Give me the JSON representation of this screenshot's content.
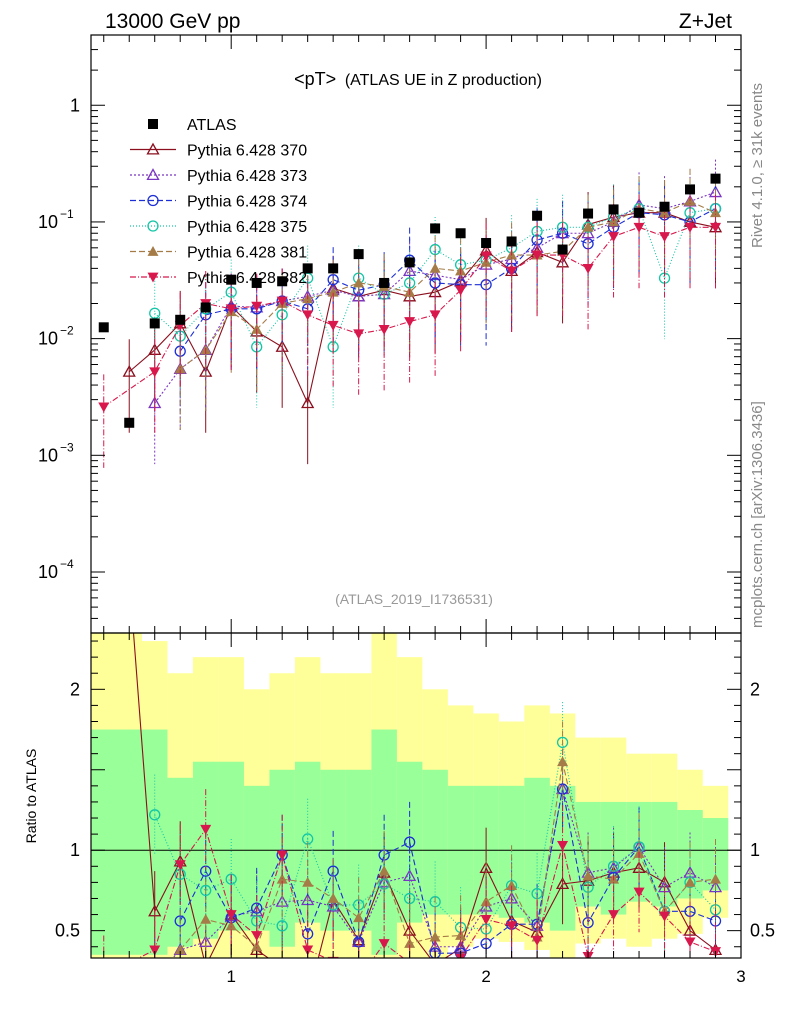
{
  "header": {
    "left": "13000 GeV pp",
    "right": "Z+Jet",
    "plot_title": "<pT>",
    "plot_subtitle": "(ATLAS UE in Z production)",
    "analysis_id": "(ATLAS_2019_I1736531)",
    "rivet_label": "Rivet 4.1.0, ≥ 31k events",
    "mcplots_label": "mcplots.cern.ch [arXiv:1306.3436]"
  },
  "chart_data": {
    "type": "scatter",
    "main": {
      "yscale": "log",
      "ylim": [
        3e-05,
        4
      ]
    },
    "ratio": {
      "ylabel": "Ratio to ATLAS",
      "ylim": [
        0.33,
        2.35
      ]
    },
    "xlim": [
      0.45,
      3.0
    ],
    "x": [
      0.5,
      0.6,
      0.7,
      0.8,
      0.9,
      1.0,
      1.1,
      1.2,
      1.3,
      1.4,
      1.5,
      1.6,
      1.7,
      1.8,
      1.9,
      2.0,
      2.1,
      2.2,
      2.3,
      2.4,
      2.5,
      2.6,
      2.7,
      2.8,
      2.9
    ],
    "xticks": [
      {
        "v": 1,
        "label": "1"
      },
      {
        "v": 2,
        "label": "2"
      },
      {
        "v": 3,
        "label": "3"
      }
    ],
    "yticks_main": [
      {
        "v": 1,
        "label": "1"
      },
      {
        "v": 0.1,
        "label": "10",
        "exp": "−1"
      },
      {
        "v": 0.01,
        "label": "10",
        "exp": "−2"
      },
      {
        "v": 0.001,
        "label": "10",
        "exp": "−3"
      },
      {
        "v": 0.0001,
        "label": "10",
        "exp": "−4"
      }
    ],
    "yticks_ratio": [
      {
        "v": 0.5,
        "label": "0.5"
      },
      {
        "v": 1,
        "label": "1"
      },
      {
        "v": 2,
        "label": "2"
      }
    ],
    "data": {
      "name": "ATLAS",
      "values": [
        0.0125,
        0.0019,
        0.0135,
        0.0145,
        0.0185,
        0.032,
        0.03,
        0.031,
        0.04,
        0.04,
        0.053,
        0.03,
        0.045,
        0.088,
        0.08,
        0.066,
        0.068,
        0.113,
        0.058,
        0.118,
        0.128,
        0.12,
        0.135,
        0.19,
        0.235
      ],
      "band_inner": [
        [
          0.35,
          1.75
        ],
        [
          0.35,
          1.75
        ],
        [
          0.35,
          1.75
        ],
        [
          0.4,
          1.45
        ],
        [
          0.45,
          1.55
        ],
        [
          0.5,
          1.55
        ],
        [
          0.5,
          1.4
        ],
        [
          0.4,
          1.5
        ],
        [
          0.55,
          1.55
        ],
        [
          0.5,
          1.5
        ],
        [
          0.5,
          1.5
        ],
        [
          0.35,
          1.75
        ],
        [
          0.55,
          1.55
        ],
        [
          0.6,
          1.5
        ],
        [
          0.6,
          1.4
        ],
        [
          0.6,
          1.4
        ],
        [
          0.58,
          1.4
        ],
        [
          0.55,
          1.45
        ],
        [
          0.5,
          1.4
        ],
        [
          0.65,
          1.3
        ],
        [
          0.6,
          1.3
        ],
        [
          0.68,
          1.3
        ],
        [
          0.65,
          1.3
        ],
        [
          0.7,
          1.25
        ],
        [
          0.75,
          1.2
        ]
      ],
      "band_outer": [
        [
          0.33,
          2.4
        ],
        [
          0.33,
          2.4
        ],
        [
          0.33,
          2.3
        ],
        [
          0.33,
          2.1
        ],
        [
          0.33,
          2.2
        ],
        [
          0.33,
          2.2
        ],
        [
          0.33,
          2.0
        ],
        [
          0.33,
          2.1
        ],
        [
          0.33,
          2.2
        ],
        [
          0.33,
          2.1
        ],
        [
          0.33,
          2.1
        ],
        [
          0.33,
          2.4
        ],
        [
          0.33,
          2.2
        ],
        [
          0.33,
          2.0
        ],
        [
          0.4,
          1.9
        ],
        [
          0.45,
          1.85
        ],
        [
          0.43,
          1.8
        ],
        [
          0.38,
          1.9
        ],
        [
          0.33,
          1.85
        ],
        [
          0.42,
          1.7
        ],
        [
          0.45,
          1.7
        ],
        [
          0.4,
          1.6
        ],
        [
          0.45,
          1.6
        ],
        [
          0.48,
          1.5
        ],
        [
          0.58,
          1.4
        ]
      ]
    },
    "legend_labels": [
      "ATLAS",
      "Pythia 6.428 370",
      "Pythia 6.428 373",
      "Pythia 6.428 374",
      "Pythia 6.428 375",
      "Pythia 6.428 381",
      "Pythia 6.428 382"
    ],
    "series": [
      {
        "name": "Pythia 6.428 370",
        "color": "#8b0f1e",
        "marker": "tri-up-open",
        "dash": "",
        "values": [
          null,
          0.0052,
          0.008,
          0.0135,
          0.0052,
          0.019,
          0.0115,
          0.0085,
          0.0028,
          0.027,
          0.023,
          0.026,
          0.023,
          0.025,
          0.031,
          0.057,
          0.038,
          0.055,
          0.045,
          0.095,
          0.11,
          0.12,
          0.12,
          0.1,
          0.09
        ],
        "ratio": [
          null,
          2.7,
          0.62,
          0.93,
          0.28,
          0.6,
          0.38,
          0.27,
          0.07,
          0.69,
          0.44,
          0.86,
          0.5,
          0.29,
          0.39,
          0.89,
          0.56,
          0.49,
          0.79,
          0.81,
          0.86,
          0.89,
          0.8,
          0.5,
          0.38
        ]
      },
      {
        "name": "Pythia 6.428 373",
        "color": "#7b35c2",
        "marker": "tri-up-open",
        "dash": "2,2",
        "values": [
          null,
          null,
          0.0028,
          0.0055,
          0.008,
          0.019,
          0.0185,
          0.021,
          0.023,
          0.026,
          0.023,
          0.024,
          0.038,
          0.035,
          0.032,
          0.043,
          0.048,
          0.06,
          0.08,
          0.08,
          0.1,
          0.14,
          0.13,
          0.15,
          0.18
        ],
        "ratio": [
          null,
          null,
          0.21,
          0.38,
          0.43,
          0.59,
          0.62,
          0.68,
          0.69,
          0.65,
          0.43,
          0.8,
          0.84,
          0.4,
          0.4,
          0.65,
          0.7,
          0.53,
          1.38,
          0.86,
          0.89,
          1.02,
          0.77,
          0.86,
          0.77
        ]
      },
      {
        "name": "Pythia 6.428 374",
        "color": "#1c2fd6",
        "marker": "circle-open",
        "dash": "6,3",
        "values": [
          null,
          null,
          null,
          0.0078,
          0.016,
          0.018,
          0.018,
          0.021,
          0.018,
          0.032,
          0.026,
          0.029,
          0.047,
          0.03,
          0.029,
          0.029,
          0.04,
          0.07,
          0.08,
          0.065,
          0.09,
          0.12,
          0.115,
          0.1,
          0.13
        ],
        "ratio": [
          null,
          null,
          null,
          0.56,
          0.87,
          0.58,
          0.64,
          0.97,
          0.48,
          0.87,
          0.43,
          0.97,
          1.05,
          0.36,
          0.36,
          0.42,
          0.54,
          0.54,
          1.38,
          0.55,
          0.83,
          1.02,
          0.62,
          0.62,
          0.56
        ]
      },
      {
        "name": "Pythia 6.428 375",
        "color": "#13c6a6",
        "marker": "circle-open",
        "dash": "1,2",
        "values": [
          null,
          null,
          0.0165,
          0.0105,
          0.018,
          0.025,
          0.0085,
          0.016,
          0.033,
          0.0085,
          0.033,
          0.024,
          0.03,
          0.058,
          0.043,
          0.047,
          0.06,
          0.083,
          0.09,
          0.09,
          0.11,
          0.13,
          0.033,
          0.12,
          0.13
        ],
        "ratio": [
          null,
          null,
          1.22,
          0.85,
          0.75,
          0.82,
          0.56,
          0.53,
          1.07,
          0.66,
          0.66,
          0.79,
          0.7,
          0.68,
          0.52,
          0.51,
          0.78,
          0.73,
          1.67,
          0.77,
          0.9,
          1.02,
          0.62,
          0.8,
          0.63
        ]
      },
      {
        "name": "Pythia 6.428 381",
        "color": "#a57c47",
        "marker": "tri-up",
        "dash": "6,3",
        "values": [
          null,
          null,
          null,
          0.0055,
          0.008,
          0.017,
          0.012,
          0.02,
          0.022,
          0.025,
          0.03,
          0.028,
          0.025,
          0.04,
          0.038,
          0.045,
          0.052,
          0.052,
          0.056,
          0.09,
          0.1,
          0.13,
          0.12,
          0.15,
          0.12
        ],
        "ratio": [
          null,
          null,
          null,
          0.38,
          0.57,
          0.53,
          0.4,
          0.82,
          0.8,
          0.7,
          0.58,
          0.87,
          0.42,
          0.46,
          0.47,
          0.68,
          0.78,
          0.46,
          1.55,
          0.84,
          0.82,
          0.98,
          0.62,
          0.8,
          0.82
        ]
      },
      {
        "name": "Pythia 6.428 382",
        "color": "#d8184c",
        "marker": "tri-down",
        "dash": "6,2,1,2",
        "values": [
          0.0026,
          null,
          0.0052,
          0.013,
          0.02,
          0.018,
          0.019,
          0.021,
          0.016,
          0.013,
          0.011,
          0.012,
          0.014,
          0.016,
          0.026,
          0.051,
          0.038,
          0.052,
          0.052,
          0.04,
          0.075,
          0.09,
          0.075,
          0.09,
          0.09
        ],
        "ratio": [
          0.22,
          null,
          0.38,
          0.91,
          1.13,
          0.6,
          0.47,
          0.97,
          0.38,
          0.31,
          0.2,
          0.42,
          0.3,
          0.19,
          0.33,
          0.57,
          0.53,
          0.44,
          1.03,
          0.34,
          0.6,
          0.74,
          0.59,
          0.43,
          0.37
        ]
      }
    ]
  }
}
